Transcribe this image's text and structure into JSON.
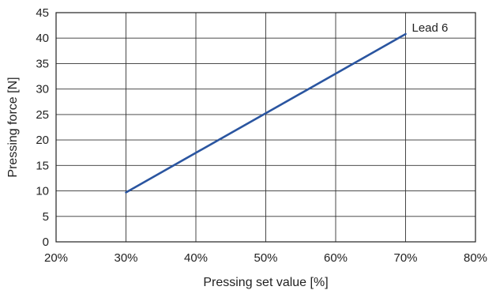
{
  "chart_data": {
    "type": "line",
    "title": "",
    "xlabel": "Pressing set value [%]",
    "ylabel": "Pressing force [N]",
    "xlim": [
      20,
      80
    ],
    "ylim": [
      0,
      45
    ],
    "x_ticks": [
      20,
      30,
      40,
      50,
      60,
      70,
      80
    ],
    "x_tick_labels": [
      "20%",
      "30%",
      "40%",
      "50%",
      "60%",
      "70%",
      "80%"
    ],
    "y_ticks": [
      0,
      5,
      10,
      15,
      20,
      25,
      30,
      35,
      40,
      45
    ],
    "y_tick_labels": [
      "0",
      "5",
      "10",
      "15",
      "20",
      "25",
      "30",
      "35",
      "40",
      "45"
    ],
    "grid": true,
    "series": [
      {
        "name": "Lead 6",
        "color": "#2a55a0",
        "x": [
          30,
          70
        ],
        "y": [
          9.7,
          40.8
        ]
      }
    ]
  }
}
